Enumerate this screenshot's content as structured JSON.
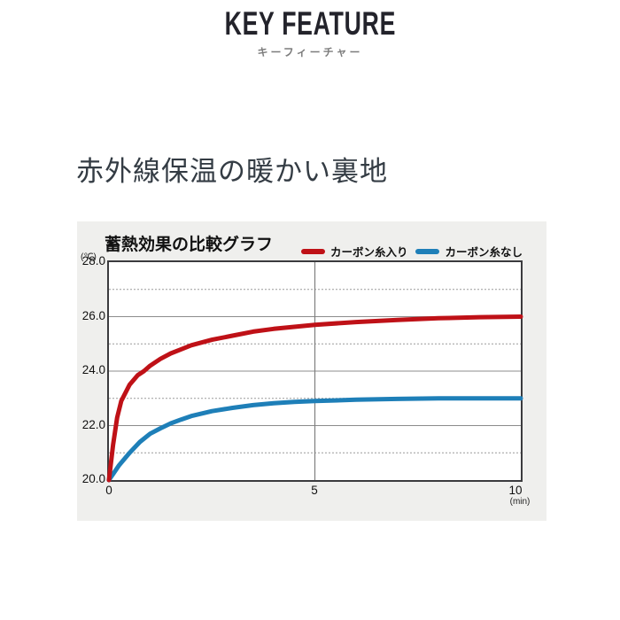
{
  "header": {
    "title": "KEY FEATURE",
    "subtitle": "キーフィーチャー"
  },
  "section": {
    "heading": "赤外線保温の暖かい裏地"
  },
  "chart_data": {
    "type": "line",
    "title": "蓄熱効果の比較グラフ",
    "y_unit_label": "(℃)",
    "x_unit_label": "(min)",
    "xlabel": "",
    "ylabel": "",
    "xlim": [
      0,
      10
    ],
    "ylim": [
      20,
      28
    ],
    "ytick_labels": [
      "28.0",
      "26.0",
      "24.0",
      "22.0",
      "20.0"
    ],
    "ytick_values": [
      28,
      26,
      24,
      22,
      20
    ],
    "xtick_labels": [
      "0",
      "5",
      "10"
    ],
    "xtick_values": [
      0,
      5,
      10
    ],
    "grid": {
      "solid_y": [
        26,
        24,
        22
      ],
      "dotted_y": [
        27,
        25,
        23,
        21
      ],
      "vertical_x": [
        5
      ]
    },
    "legend_position": "top-right",
    "series": [
      {
        "name": "カーボン糸入り",
        "color": "#bf1117",
        "points": [
          [
            0,
            20
          ],
          [
            0.1,
            21.3
          ],
          [
            0.2,
            22.3
          ],
          [
            0.3,
            22.9
          ],
          [
            0.5,
            23.5
          ],
          [
            0.7,
            23.85
          ],
          [
            0.85,
            24.0
          ],
          [
            1.0,
            24.2
          ],
          [
            1.25,
            24.45
          ],
          [
            1.5,
            24.65
          ],
          [
            1.75,
            24.8
          ],
          [
            2.0,
            24.95
          ],
          [
            2.5,
            25.15
          ],
          [
            3.0,
            25.3
          ],
          [
            3.5,
            25.45
          ],
          [
            4.0,
            25.55
          ],
          [
            5.0,
            25.7
          ],
          [
            6.0,
            25.8
          ],
          [
            7.0,
            25.88
          ],
          [
            8.0,
            25.94
          ],
          [
            9.0,
            25.98
          ],
          [
            10,
            26.0
          ]
        ]
      },
      {
        "name": "カーボン糸なし",
        "color": "#1e7fb8",
        "points": [
          [
            0,
            20
          ],
          [
            0.25,
            20.55
          ],
          [
            0.5,
            21.0
          ],
          [
            0.75,
            21.4
          ],
          [
            1.0,
            21.7
          ],
          [
            1.25,
            21.9
          ],
          [
            1.5,
            22.08
          ],
          [
            1.75,
            22.22
          ],
          [
            2.0,
            22.35
          ],
          [
            2.5,
            22.53
          ],
          [
            3.0,
            22.65
          ],
          [
            3.5,
            22.75
          ],
          [
            4.0,
            22.82
          ],
          [
            4.5,
            22.87
          ],
          [
            5.0,
            22.9
          ],
          [
            6.0,
            22.95
          ],
          [
            7.0,
            22.98
          ],
          [
            8.0,
            23.0
          ],
          [
            9.0,
            23.0
          ],
          [
            10,
            23.0
          ]
        ]
      }
    ],
    "style_colors": {
      "panel_background": "#efefed",
      "plot_background": "#ffffff",
      "plot_border": "#3b3b3e",
      "grid_solid": "#8c8c8c",
      "grid_dotted": "#9a9a9a",
      "vertical_line": "#7f7f7f"
    }
  }
}
